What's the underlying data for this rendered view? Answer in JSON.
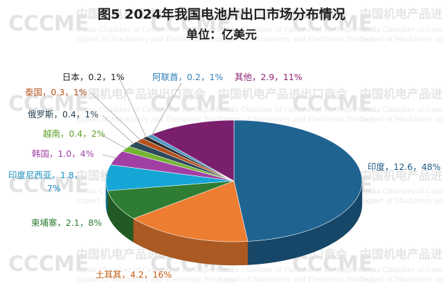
{
  "watermark": {
    "logo": "CCCME",
    "org_cn": "中国机电产品进出口商会",
    "org_en_line1": "China Chamber of Commerce for Import and",
    "org_en_line2": "Export of Machinery and Electronic Products"
  },
  "chart_data": {
    "type": "pie",
    "title": "图5 2024年我国电池片出口市场分布情况",
    "subtitle": "单位：亿美元",
    "slices": [
      {
        "name": "印度",
        "value": 12.6,
        "percent": 48,
        "label": "印度，12.6，48%",
        "color": "#1f6391",
        "label_color": "#1f5a85"
      },
      {
        "name": "土耳其",
        "value": 4.2,
        "percent": 16,
        "label": "土耳其，4.2，16%",
        "color": "#ed7d31",
        "label_color": "#c55a11"
      },
      {
        "name": "柬埔寨",
        "value": 2.1,
        "percent": 8,
        "label": "柬埔寨，2.1，8%",
        "color": "#2e7d32",
        "label_color": "#2e7d32"
      },
      {
        "name": "印度尼西亚",
        "value": 1.8,
        "percent": 7,
        "label_line1": "印度尼西亚，1.8，",
        "label_line2": "7%",
        "color": "#16a6d6",
        "label_color": "#1b8fc0"
      },
      {
        "name": "韩国",
        "value": 1.0,
        "percent": 4,
        "label": "韩国，1.0，4%",
        "color": "#a23fa5",
        "label_color": "#a23fa5"
      },
      {
        "name": "越南",
        "value": 0.4,
        "percent": 2,
        "label": "越南，0.4，2%",
        "color": "#73b431",
        "label_color": "#5d9f26"
      },
      {
        "name": "俄罗斯",
        "value": 0.4,
        "percent": 1,
        "label": "俄罗斯，0.4，1%",
        "color": "#2c4a5a",
        "label_color": "#1f3c4d"
      },
      {
        "name": "泰国",
        "value": 0.3,
        "percent": 1,
        "label": "泰国，0.3，1%",
        "color": "#b5501b",
        "label_color": "#b5501b"
      },
      {
        "name": "日本",
        "value": 0.2,
        "percent": 1,
        "label": "日本，0.2，1%",
        "color": "#2e2e2e",
        "label_color": "#222222"
      },
      {
        "name": "阿联酋",
        "value": 0.2,
        "percent": 1,
        "label": "阿联酋，0.2，1%",
        "color": "#4a97c7",
        "label_color": "#2f7fb5"
      },
      {
        "name": "其他",
        "value": 2.9,
        "percent": 11,
        "label": "其他，2.9，11%",
        "color": "#7a1f6e",
        "label_color": "#8a1f72"
      }
    ]
  }
}
